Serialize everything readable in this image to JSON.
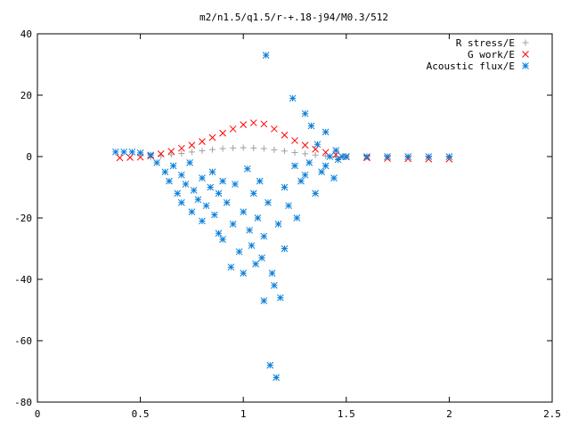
{
  "chart_data": {
    "type": "scatter",
    "title": "m2/n1.5/q1.5/r-+.18-j94/M0.3/512",
    "xlabel": "",
    "ylabel": "",
    "xlim": [
      0,
      2.5
    ],
    "ylim": [
      -80,
      40
    ],
    "x_ticks": [
      0,
      0.5,
      1,
      1.5,
      2,
      2.5
    ],
    "y_ticks": [
      -80,
      -60,
      -40,
      -20,
      0,
      20,
      40
    ],
    "x_tick_labels": [
      "0",
      "0.5",
      "1",
      "1.5",
      "2",
      "2.5"
    ],
    "y_tick_labels": [
      "-80",
      "-60",
      "-40",
      "-20",
      "0",
      "20",
      "40"
    ],
    "grid": false,
    "legend_position": "top-right",
    "series": [
      {
        "name": "R stress/E",
        "marker": "plus",
        "color": "#a0a0a0",
        "x": [
          0.55,
          0.6,
          0.65,
          0.7,
          0.75,
          0.8,
          0.85,
          0.9,
          0.95,
          1.0,
          1.05,
          1.1,
          1.15,
          1.2,
          1.25,
          1.3,
          1.35,
          1.4,
          1.45,
          1.5
        ],
        "y": [
          -0.2,
          0.2,
          0.6,
          1.0,
          1.5,
          1.9,
          2.3,
          2.6,
          2.8,
          2.9,
          2.8,
          2.6,
          2.2,
          1.8,
          1.3,
          0.9,
          0.5,
          0.2,
          0.0,
          -0.1
        ]
      },
      {
        "name": "G work/E",
        "marker": "cross",
        "color": "#ff0000",
        "x": [
          0.4,
          0.45,
          0.5,
          0.55,
          0.6,
          0.65,
          0.7,
          0.75,
          0.8,
          0.85,
          0.9,
          0.95,
          1.0,
          1.05,
          1.1,
          1.15,
          1.2,
          1.25,
          1.3,
          1.35,
          1.4,
          1.45,
          1.5,
          1.6,
          1.7,
          1.8,
          1.9,
          2.0
        ],
        "y": [
          -0.4,
          -0.3,
          -0.2,
          0.2,
          0.9,
          1.7,
          2.7,
          3.7,
          4.9,
          6.2,
          7.6,
          9.0,
          10.4,
          11.0,
          10.6,
          9.0,
          7.0,
          5.2,
          3.7,
          2.4,
          1.4,
          0.6,
          -0.1,
          -0.4,
          -0.6,
          -0.7,
          -0.8,
          -0.8
        ]
      },
      {
        "name": "Acoustic flux/E",
        "marker": "star",
        "color": "#0a7fd9",
        "x": [
          0.38,
          0.42,
          0.46,
          0.5,
          0.55,
          0.58,
          0.62,
          0.64,
          0.66,
          0.68,
          0.7,
          0.7,
          0.72,
          0.74,
          0.75,
          0.76,
          0.78,
          0.8,
          0.8,
          0.82,
          0.84,
          0.85,
          0.86,
          0.88,
          0.88,
          0.9,
          0.9,
          0.92,
          0.94,
          0.95,
          0.96,
          0.98,
          1.0,
          1.0,
          1.02,
          1.03,
          1.04,
          1.05,
          1.06,
          1.07,
          1.08,
          1.09,
          1.1,
          1.1,
          1.11,
          1.12,
          1.13,
          1.14,
          1.15,
          1.16,
          1.17,
          1.18,
          1.2,
          1.2,
          1.22,
          1.24,
          1.25,
          1.26,
          1.28,
          1.3,
          1.3,
          1.32,
          1.33,
          1.35,
          1.36,
          1.38,
          1.4,
          1.4,
          1.42,
          1.44,
          1.45,
          1.46,
          1.48,
          1.5,
          1.6,
          1.7,
          1.8,
          1.9,
          2.0
        ],
        "y": [
          1.5,
          1.5,
          1.5,
          1.2,
          0.5,
          -2,
          -5,
          -8,
          -3,
          -12,
          -6,
          -15,
          -9,
          -2,
          -18,
          -11,
          -14,
          -7,
          -21,
          -16,
          -10,
          -5,
          -19,
          -25,
          -12,
          -8,
          -27,
          -15,
          -36,
          -22,
          -9,
          -31,
          -18,
          -38,
          -4,
          -24,
          -29,
          -12,
          -35,
          -20,
          -8,
          -33,
          -47,
          -26,
          33,
          -15,
          -68,
          -38,
          -42,
          -72,
          -22,
          -46,
          -10,
          -30,
          -16,
          19,
          -3,
          -20,
          -8,
          14,
          -6,
          -2,
          10,
          -12,
          4,
          -5,
          8,
          -3,
          0,
          -7,
          2,
          -1,
          0,
          0,
          0,
          0,
          0,
          0,
          0
        ]
      }
    ]
  }
}
